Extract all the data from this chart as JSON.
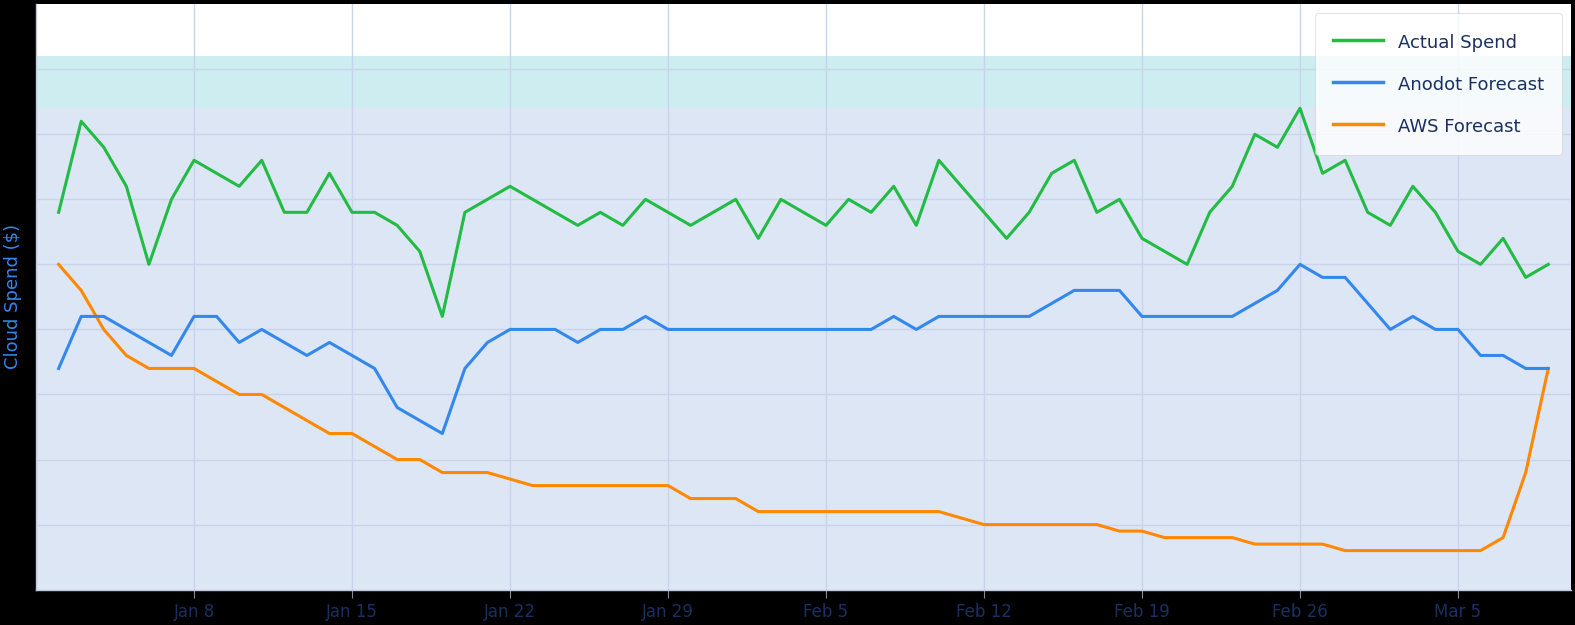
{
  "ylabel": "Cloud Spend ($)",
  "plot_bg_color": "#dde6f5",
  "grid_color": "#c8d4ea",
  "white_band_top": "#ffffff",
  "cyan_band_color": "#c8f0f0",
  "tick_labels": [
    "Jan 8",
    "Jan 15",
    "Jan 22",
    "Jan 29",
    "Feb 5",
    "Feb 12",
    "Feb 19",
    "Feb 26",
    "Mar 5"
  ],
  "actual_color": "#22bb44",
  "anodot_color": "#3388ee",
  "aws_color": "#ff8800",
  "legend_labels": [
    "Actual Spend",
    "Anodot Forecast",
    "AWS Forecast"
  ],
  "legend_text_color": "#1a3060",
  "axis_label_color": "#3388ee",
  "tick_color": "#1a3060",
  "fig_bg_color": "#000000",
  "figsize": [
    15.75,
    6.25
  ],
  "dpi": 100,
  "n_days": 67,
  "tick_day_positions": [
    7,
    14,
    21,
    28,
    35,
    42,
    49,
    56,
    63
  ],
  "actual_spend_days": [
    1,
    2,
    3,
    4,
    5,
    6,
    7,
    8,
    9,
    10,
    11,
    12,
    13,
    14,
    15,
    16,
    17,
    18,
    19,
    20,
    21,
    22,
    23,
    24,
    25,
    26,
    27,
    28,
    29,
    30,
    31,
    32,
    33,
    34,
    35,
    36,
    37,
    38,
    39,
    40,
    41,
    42,
    43,
    44,
    45,
    46,
    47,
    48,
    49,
    50,
    51,
    52,
    53,
    54,
    55,
    56,
    57,
    58,
    59,
    60,
    61,
    62,
    63,
    64,
    65,
    66,
    67
  ],
  "actual_spend_vals": [
    68,
    82,
    78,
    72,
    60,
    70,
    76,
    74,
    72,
    76,
    68,
    68,
    74,
    68,
    68,
    66,
    62,
    52,
    68,
    70,
    72,
    70,
    68,
    66,
    68,
    66,
    70,
    68,
    66,
    68,
    70,
    64,
    70,
    68,
    66,
    70,
    68,
    72,
    66,
    76,
    72,
    68,
    64,
    68,
    74,
    76,
    68,
    70,
    64,
    62,
    60,
    68,
    72,
    80,
    78,
    84,
    74,
    76,
    68,
    66,
    72,
    68,
    62,
    60,
    64,
    58,
    60
  ],
  "anodot_forecast_days": [
    1,
    2,
    3,
    4,
    5,
    6,
    7,
    8,
    9,
    10,
    11,
    12,
    13,
    14,
    15,
    16,
    17,
    18,
    19,
    20,
    21,
    22,
    23,
    24,
    25,
    26,
    27,
    28,
    29,
    30,
    31,
    32,
    33,
    34,
    35,
    36,
    37,
    38,
    39,
    40,
    41,
    42,
    43,
    44,
    45,
    46,
    47,
    48,
    49,
    50,
    51,
    52,
    53,
    54,
    55,
    56,
    57,
    58,
    59,
    60,
    61,
    62,
    63,
    64,
    65,
    66,
    67
  ],
  "anodot_forecast_vals": [
    44,
    52,
    52,
    50,
    48,
    46,
    52,
    52,
    48,
    50,
    48,
    46,
    48,
    46,
    44,
    38,
    36,
    34,
    44,
    48,
    50,
    50,
    50,
    48,
    50,
    50,
    52,
    50,
    50,
    50,
    50,
    50,
    50,
    50,
    50,
    50,
    50,
    52,
    50,
    52,
    52,
    52,
    52,
    52,
    54,
    56,
    56,
    56,
    52,
    52,
    52,
    52,
    52,
    54,
    56,
    60,
    58,
    58,
    54,
    50,
    52,
    50,
    50,
    46,
    46,
    44,
    44
  ],
  "aws_forecast_days": [
    1,
    2,
    3,
    4,
    5,
    6,
    7,
    8,
    9,
    10,
    11,
    12,
    13,
    14,
    15,
    16,
    17,
    18,
    19,
    20,
    21,
    22,
    23,
    24,
    25,
    26,
    27,
    28,
    29,
    30,
    31,
    32,
    33,
    34,
    35,
    36,
    37,
    38,
    39,
    40,
    41,
    42,
    43,
    44,
    45,
    46,
    47,
    48,
    49,
    50,
    51,
    52,
    53,
    54,
    55,
    56,
    57,
    58,
    59,
    60,
    61,
    62,
    63,
    64,
    65,
    66,
    67
  ],
  "aws_forecast_vals": [
    60,
    56,
    50,
    46,
    44,
    44,
    44,
    42,
    40,
    40,
    38,
    36,
    34,
    34,
    32,
    30,
    30,
    28,
    28,
    28,
    27,
    26,
    26,
    26,
    26,
    26,
    26,
    26,
    24,
    24,
    24,
    22,
    22,
    22,
    22,
    22,
    22,
    22,
    22,
    22,
    21,
    20,
    20,
    20,
    20,
    20,
    20,
    19,
    19,
    18,
    18,
    18,
    18,
    17,
    17,
    17,
    17,
    16,
    16,
    16,
    16,
    16,
    16,
    16,
    18,
    28,
    44
  ]
}
